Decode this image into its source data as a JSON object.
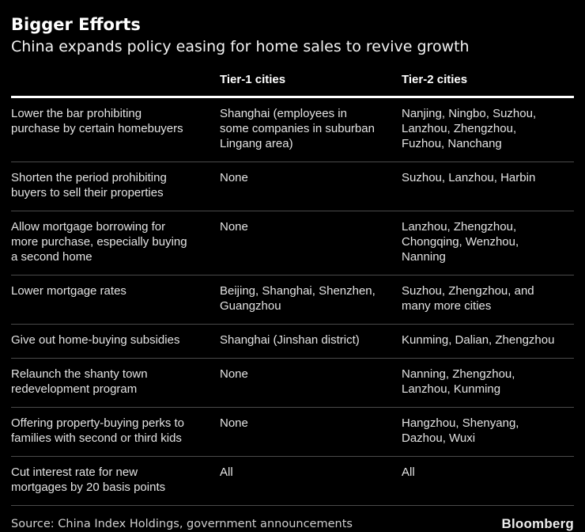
{
  "page": {
    "title": "Bigger Efforts",
    "subtitle": "China expands policy easing for home sales to revive growth"
  },
  "chart_data": {
    "type": "table",
    "title": "Bigger Efforts",
    "subtitle": "China expands policy easing for home sales to revive growth",
    "columns": [
      "",
      "Tier-1 cities",
      "Tier-2 cities"
    ],
    "rows": [
      [
        "Lower the bar prohibiting\npurchase by certain homebuyers",
        "Shanghai (employees in\nsome companies in suburban\nLingang area)",
        "Nanjing, Ningbo, Suzhou,\nLanzhou, Zhengzhou,\nFuzhou, Nanchang"
      ],
      [
        "Shorten the period prohibiting\nbuyers to sell their properties",
        "None",
        "Suzhou, Lanzhou, Harbin"
      ],
      [
        "Allow mortgage borrowing for\nmore purchase, especially buying\na second home",
        "None",
        "Lanzhou, Zhengzhou,\nChongqing, Wenzhou,\nNanning"
      ],
      [
        "Lower mortgage rates",
        "Beijing, Shanghai, Shenzhen,\nGuangzhou",
        "Suzhou, Zhengzhou, and\nmany more cities"
      ],
      [
        "Give out home-buying subsidies",
        "Shanghai (Jinshan district)",
        "Kunming, Dalian, Zhengzhou"
      ],
      [
        "Relaunch the shanty town\nredevelopment program",
        "None",
        "Nanning, Zhengzhou,\nLanzhou, Kunming"
      ],
      [
        "Offering property-buying perks to\nfamilies with second or third kids",
        "None",
        "Hangzhou, Shenyang,\nDazhou, Wuxi"
      ],
      [
        "Cut interest rate for new\nmortgages by 20 basis points",
        "All",
        "All"
      ]
    ],
    "legend": null,
    "grid": "horizontal-rules-only"
  },
  "footer": {
    "source": "Source: China Index Holdings, government announcements",
    "brand": "Bloomberg"
  },
  "colors": {
    "background": "#000000",
    "title_text": "#ffffff",
    "body_text": "#e3e3e3",
    "header_rule": "#ffffff",
    "row_rule": "#4a4a4a",
    "source_text": "#cfcfcf",
    "brand_text": "#ededed"
  }
}
